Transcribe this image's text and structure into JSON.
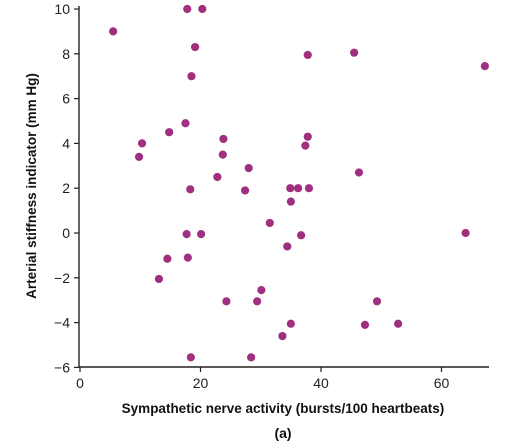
{
  "chart_data": {
    "type": "scatter",
    "xlabel": "Sympathetic nerve activity (bursts/100 heartbeats)",
    "ylabel": "Arterial stiffness indicator (mm Hg)",
    "panel_label": "(a)",
    "xlim": [
      0,
      70
    ],
    "ylim": [
      -6,
      10
    ],
    "xticks": [
      0,
      20,
      40,
      60
    ],
    "yticks": [
      -6,
      -4,
      -2,
      0,
      2,
      4,
      6,
      8,
      10
    ],
    "x_tick_labels": [
      "0",
      "20",
      "40",
      "60"
    ],
    "y_tick_labels": [
      "−6",
      "−4",
      "−2",
      "0",
      "2",
      "4",
      "6",
      "8",
      "10"
    ],
    "grid": false,
    "marker_color": "#a0307f",
    "points": [
      {
        "x": 5.5,
        "y": 9.0
      },
      {
        "x": 17.8,
        "y": 10.0
      },
      {
        "x": 20.3,
        "y": 10.0
      },
      {
        "x": 19.1,
        "y": 8.3
      },
      {
        "x": 18.5,
        "y": 7.0
      },
      {
        "x": 17.5,
        "y": 4.9
      },
      {
        "x": 14.8,
        "y": 4.5
      },
      {
        "x": 10.3,
        "y": 4.0
      },
      {
        "x": 9.8,
        "y": 3.4
      },
      {
        "x": 23.8,
        "y": 4.2
      },
      {
        "x": 23.7,
        "y": 3.5
      },
      {
        "x": 28.0,
        "y": 2.9
      },
      {
        "x": 22.8,
        "y": 2.5
      },
      {
        "x": 27.4,
        "y": 1.9
      },
      {
        "x": 18.3,
        "y": 1.95
      },
      {
        "x": 34.9,
        "y": 2.0
      },
      {
        "x": 36.2,
        "y": 2.0
      },
      {
        "x": 38.0,
        "y": 2.0
      },
      {
        "x": 35.0,
        "y": 1.4
      },
      {
        "x": 37.8,
        "y": 7.95
      },
      {
        "x": 45.5,
        "y": 8.05
      },
      {
        "x": 67.2,
        "y": 7.45
      },
      {
        "x": 37.8,
        "y": 4.3
      },
      {
        "x": 37.4,
        "y": 3.9
      },
      {
        "x": 46.3,
        "y": 2.7
      },
      {
        "x": 31.5,
        "y": 0.45
      },
      {
        "x": 17.7,
        "y": -0.05
      },
      {
        "x": 20.1,
        "y": -0.05
      },
      {
        "x": 36.7,
        "y": -0.1
      },
      {
        "x": 34.4,
        "y": -0.6
      },
      {
        "x": 64.0,
        "y": 0.0
      },
      {
        "x": 14.5,
        "y": -1.15
      },
      {
        "x": 17.9,
        "y": -1.1
      },
      {
        "x": 13.1,
        "y": -2.05
      },
      {
        "x": 30.1,
        "y": -2.55
      },
      {
        "x": 24.3,
        "y": -3.05
      },
      {
        "x": 29.4,
        "y": -3.05
      },
      {
        "x": 49.3,
        "y": -3.05
      },
      {
        "x": 35.0,
        "y": -4.05
      },
      {
        "x": 47.3,
        "y": -4.1
      },
      {
        "x": 52.8,
        "y": -4.05
      },
      {
        "x": 33.6,
        "y": -4.6
      },
      {
        "x": 18.4,
        "y": -5.55
      },
      {
        "x": 28.4,
        "y": -5.55
      }
    ]
  }
}
